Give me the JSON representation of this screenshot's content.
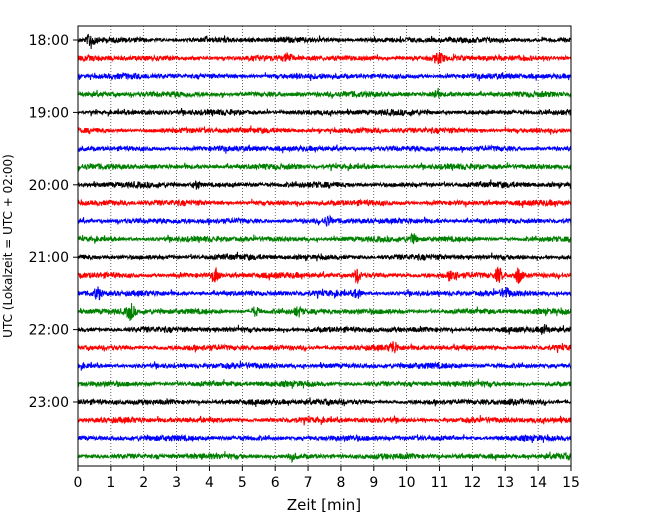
{
  "chart_data": {
    "type": "line",
    "title": "",
    "xlabel": "Zeit  [min]",
    "ylabel": "UTC (Lokalzeit = UTC + 02:00)",
    "xlim": [
      0,
      15
    ],
    "x_ticks": [
      "0",
      "1",
      "2",
      "3",
      "4",
      "5",
      "6",
      "7",
      "8",
      "9",
      "10",
      "11",
      "12",
      "13",
      "14",
      "15"
    ],
    "y_tick_labels": [
      "18:00",
      "19:00",
      "20:00",
      "21:00",
      "22:00",
      "23:00"
    ],
    "grid": "vertical-dotted",
    "trace_colors": [
      "#000000",
      "#ff0000",
      "#0000ff",
      "#008000"
    ],
    "row_interval_minutes": 15,
    "rows": [
      {
        "start": "18:00",
        "color": "#000000"
      },
      {
        "start": "18:15",
        "color": "#ff0000"
      },
      {
        "start": "18:30",
        "color": "#0000ff"
      },
      {
        "start": "18:45",
        "color": "#008000"
      },
      {
        "start": "19:00",
        "color": "#000000"
      },
      {
        "start": "19:15",
        "color": "#ff0000"
      },
      {
        "start": "19:30",
        "color": "#0000ff"
      },
      {
        "start": "19:45",
        "color": "#008000"
      },
      {
        "start": "20:00",
        "color": "#000000"
      },
      {
        "start": "20:15",
        "color": "#ff0000"
      },
      {
        "start": "20:30",
        "color": "#0000ff"
      },
      {
        "start": "20:45",
        "color": "#008000"
      },
      {
        "start": "21:00",
        "color": "#000000"
      },
      {
        "start": "21:15",
        "color": "#ff0000"
      },
      {
        "start": "21:30",
        "color": "#0000ff"
      },
      {
        "start": "21:45",
        "color": "#008000"
      },
      {
        "start": "22:00",
        "color": "#000000"
      },
      {
        "start": "22:15",
        "color": "#ff0000"
      },
      {
        "start": "22:30",
        "color": "#0000ff"
      },
      {
        "start": "22:45",
        "color": "#008000"
      },
      {
        "start": "23:00",
        "color": "#000000"
      },
      {
        "start": "23:15",
        "color": "#ff0000"
      },
      {
        "start": "23:30",
        "color": "#0000ff"
      },
      {
        "start": "23:45",
        "color": "#008000"
      }
    ],
    "events": [
      {
        "row": 0,
        "t": 0.4,
        "amp": 1.0
      },
      {
        "row": 1,
        "t": 6.4,
        "amp": 0.6
      },
      {
        "row": 1,
        "t": 11.0,
        "amp": 0.6
      },
      {
        "row": 3,
        "t": 10.9,
        "amp": 0.5
      },
      {
        "row": 8,
        "t": 3.6,
        "amp": 0.5
      },
      {
        "row": 10,
        "t": 7.6,
        "amp": 0.5
      },
      {
        "row": 11,
        "t": 10.2,
        "amp": 0.5
      },
      {
        "row": 13,
        "t": 4.2,
        "amp": 0.9
      },
      {
        "row": 13,
        "t": 8.5,
        "amp": 0.8
      },
      {
        "row": 13,
        "t": 11.4,
        "amp": 0.8
      },
      {
        "row": 13,
        "t": 12.8,
        "amp": 0.9
      },
      {
        "row": 13,
        "t": 13.4,
        "amp": 1.0
      },
      {
        "row": 14,
        "t": 0.6,
        "amp": 0.8
      },
      {
        "row": 14,
        "t": 8.5,
        "amp": 0.5
      },
      {
        "row": 14,
        "t": 13.0,
        "amp": 0.6
      },
      {
        "row": 15,
        "t": 1.6,
        "amp": 1.0
      },
      {
        "row": 15,
        "t": 5.4,
        "amp": 0.6
      },
      {
        "row": 15,
        "t": 6.7,
        "amp": 0.5
      },
      {
        "row": 16,
        "t": 14.2,
        "amp": 0.5
      },
      {
        "row": 17,
        "t": 9.6,
        "amp": 0.7
      },
      {
        "row": 23,
        "t": 6.5,
        "amp": 0.5
      }
    ]
  }
}
